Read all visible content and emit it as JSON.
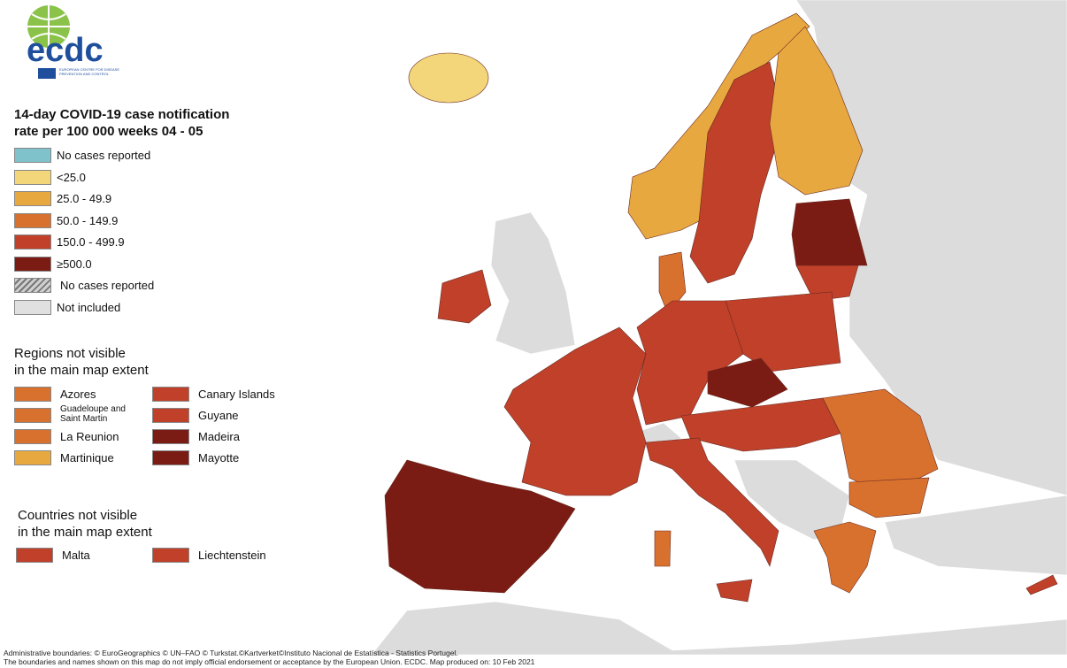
{
  "logo": {
    "name": "ecdc",
    "subtitle": "EUROPEAN CENTRE FOR DISEASE PREVENTION AND CONTROL"
  },
  "legend": {
    "title_lines": [
      "14-day COVID-19 case notification",
      "rate per 100 000 weeks  04 - 05"
    ],
    "items": [
      {
        "label": "No cases reported",
        "color": "#7fc2cb"
      },
      {
        "label": "<25.0",
        "color": "#f4d67a"
      },
      {
        "label": "25.0 - 49.9",
        "color": "#e8a840"
      },
      {
        "label": "50.0 - 149.9",
        "color": "#d9712e"
      },
      {
        "label": "150.0 - 499.9",
        "color": "#c0402a"
      },
      {
        "label": "≥500.0",
        "color": "#7a1b14"
      },
      {
        "label": "No cases reported",
        "color": "#cfcfcf",
        "pattern": "hatched"
      },
      {
        "label": "Not included",
        "color": "#e0e0e0"
      }
    ]
  },
  "regions": {
    "title_lines": [
      "Regions not visible",
      "in the main map extent"
    ],
    "items": [
      {
        "label": "Azores",
        "color": "#d9712e"
      },
      {
        "label": "Guadeloupe and Saint Martin",
        "color": "#d9712e"
      },
      {
        "label": "La Reunion",
        "color": "#d9712e"
      },
      {
        "label": "Martinique",
        "color": "#e8a840"
      },
      {
        "label": "Canary Islands",
        "color": "#c0402a"
      },
      {
        "label": "Guyane",
        "color": "#c0402a"
      },
      {
        "label": "Madeira",
        "color": "#7a1b14"
      },
      {
        "label": "Mayotte",
        "color": "#7a1b14"
      }
    ]
  },
  "countries": {
    "title_lines": [
      "Countries not visible",
      "in the main map extent"
    ],
    "items": [
      {
        "label": "Malta",
        "color": "#c0402a"
      },
      {
        "label": "Liechtenstein",
        "color": "#c0402a"
      }
    ]
  },
  "footer": [
    "Administrative boundaries: © EuroGeographics © UN–FAO © Turkstat.©Kartverket©Instituto Nacional de Estatística - Statistics Portugel.",
    "The boundaries and names shown on this map do not imply official endorsement or acceptance by the European Union. ECDC. Map produced on: 10 Feb 2021"
  ]
}
